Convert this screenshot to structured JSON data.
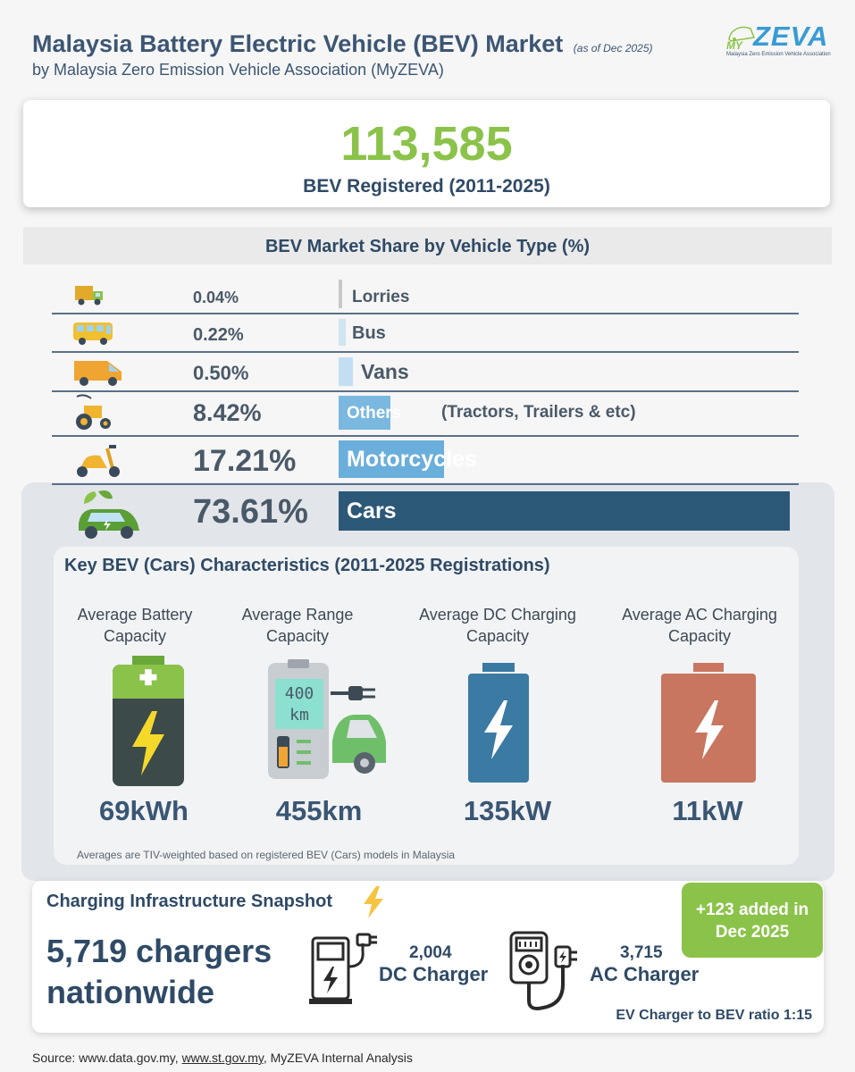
{
  "header": {
    "title": "Malaysia Battery Electric Vehicle (BEV) Market",
    "title_note": "(as of Dec 2025)",
    "subtitle": "by Malaysia Zero Emission Vehicle Association (MyZEVA)",
    "logo_text": "ZEVA",
    "logo_prefix": "MY",
    "logo_tagline": "Malaysia Zero Emission Vehicle Association"
  },
  "total": {
    "value": "113,585",
    "label": "BEV Registered (2011-2025)"
  },
  "share_section_title": "BEV Market Share by Vehicle Type (%)",
  "chart_data": {
    "type": "bar",
    "title": "BEV Market Share by Vehicle Type (%)",
    "categories": [
      "Lorries",
      "Bus",
      "Vans",
      "Others",
      "Motorcycles",
      "Cars"
    ],
    "values": [
      0.04,
      0.22,
      0.5,
      8.42,
      17.21,
      73.61
    ],
    "value_labels": [
      "0.04%",
      "0.22%",
      "0.50%",
      "8.42%",
      "17.21%",
      "73.61%"
    ],
    "annotations": {
      "Others": "(Tractors, Trailers & etc)"
    },
    "colors": [
      "#c8c8c8",
      "#d0e4f2",
      "#c4def1",
      "#7ab8e0",
      "#6aaedb",
      "#2c5878"
    ],
    "icons": [
      "lorry-icon",
      "bus-icon",
      "van-icon",
      "tractor-icon",
      "motorcycle-icon",
      "car-icon"
    ]
  },
  "key_characteristics": {
    "title": "Key BEV (Cars) Characteristics (2011-2025 Registrations)",
    "items": [
      {
        "label": "Average Battery Capacity",
        "value": "69kWh",
        "icon": "battery-icon",
        "color": "#8bc34a"
      },
      {
        "label": "Average Range Capacity",
        "value": "455km",
        "icon": "range-station-icon",
        "color": "#6fbf6a",
        "screen_text": "400 km"
      },
      {
        "label": "Average DC Charging Capacity",
        "value": "135kW",
        "icon": "dc-battery-icon",
        "color": "#3a7aa3"
      },
      {
        "label": "Average AC Charging Capacity",
        "value": "11kW",
        "icon": "ac-battery-icon",
        "color": "#c87660"
      }
    ],
    "note": "Averages are TIV-weighted based on registered BEV (Cars) models in Malaysia"
  },
  "charging": {
    "title": "Charging Infrastructure Snapshot",
    "nationwide": "5,719 chargers nationwide",
    "added": "+123 added in Dec 2025",
    "dc_count": "2,004",
    "dc_label": "DC Charger",
    "ac_count": "3,715",
    "ac_label": "AC Charger",
    "ratio": "EV Charger to BEV ratio 1:15"
  },
  "footer": {
    "source_prefix": "Source: www.data.gov.my, ",
    "source_link": "www.st.gov.my",
    "source_suffix": ", MyZEVA Internal Analysis"
  }
}
